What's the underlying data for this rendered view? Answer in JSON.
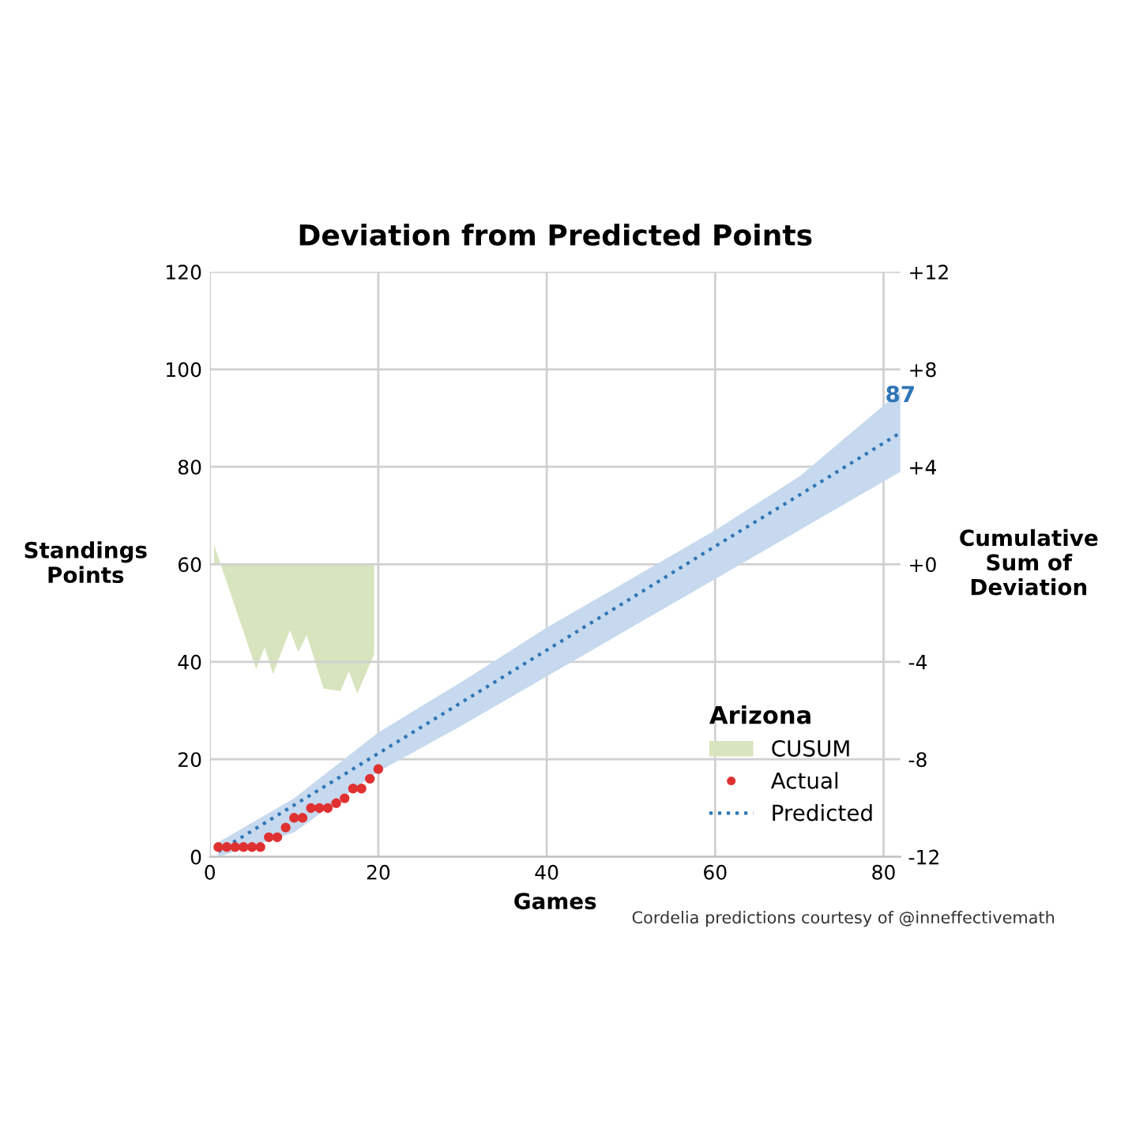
{
  "chart_data": {
    "type": "line",
    "title": "Deviation from Predicted Points",
    "xlabel": "Games",
    "ylabel": "Standings\nPoints",
    "y2label": "Cumulative\nSum of\nDeviation",
    "legend_title": "Arizona",
    "legend": "bottom right",
    "grid": true,
    "xlim": [
      0,
      82
    ],
    "xticks": [
      0,
      20,
      40,
      60,
      80
    ],
    "ylim": [
      0,
      120
    ],
    "yticks": [
      0,
      20,
      40,
      60,
      80,
      100,
      120
    ],
    "y2lim": [
      -12,
      12
    ],
    "y2ticks": [
      {
        "value": -12,
        "label": "-12"
      },
      {
        "value": -8,
        "label": "-8"
      },
      {
        "value": -4,
        "label": "-4"
      },
      {
        "value": 0,
        "label": "+0"
      },
      {
        "value": 4,
        "label": "+4"
      },
      {
        "value": 8,
        "label": "+8"
      },
      {
        "value": 12,
        "label": "+12"
      }
    ],
    "series": [
      {
        "name": "CUSUM",
        "type": "area",
        "axis": "y2",
        "color": "#d7e4bd",
        "x": [
          0.5,
          5.5,
          6.5,
          7.5,
          9.5,
          10.5,
          11.5,
          13.5,
          15.5,
          16.5,
          17.5,
          19.5
        ],
        "values": [
          0.8,
          -4.3,
          -3.4,
          -4.5,
          -2.7,
          -3.6,
          -2.9,
          -5.1,
          -5.2,
          -4.4,
          -5.3,
          -3.7
        ]
      },
      {
        "name": "Actual",
        "type": "scatter",
        "marker": "circle",
        "color": "#e03131",
        "x": [
          1,
          2,
          3,
          4,
          5,
          6,
          7,
          8,
          9,
          10,
          11,
          12,
          13,
          14,
          15,
          16,
          17,
          18,
          19,
          20
        ],
        "values": [
          2,
          2,
          2,
          2,
          2,
          2,
          4,
          4,
          6,
          8,
          8,
          10,
          10,
          10,
          11,
          12,
          14,
          14,
          16,
          18
        ]
      },
      {
        "name": "Predicted",
        "line_style": "dotted",
        "color": "#2e75b6",
        "x": [
          1,
          10,
          20,
          30,
          40,
          50,
          60,
          70,
          82
        ],
        "values": [
          1.1,
          10.6,
          21.2,
          31.8,
          42.4,
          53,
          63.7,
          74.2,
          87
        ],
        "lower": [
          0,
          5,
          17.5,
          27,
          37,
          47,
          57,
          67,
          79
        ],
        "upper": [
          3,
          12,
          25.5,
          36,
          47,
          57,
          67,
          78,
          95.5
        ]
      }
    ],
    "annotations": [
      {
        "text": "87",
        "x": 82,
        "y": 87
      },
      "Cordelia predictions courtesy of @inneffectivemath"
    ]
  }
}
